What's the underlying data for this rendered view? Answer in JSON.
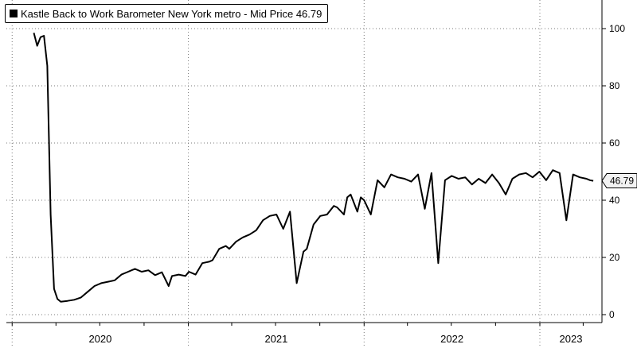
{
  "chart_data": {
    "type": "line",
    "title": "Kastle Back to Work Barometer New York metro - Mid Price 46.79",
    "legend": {
      "series_label": "Kastle Back to Work Barometer New York metro - Mid Price 46.79",
      "placement": "top-left"
    },
    "last_value_label": "46.79",
    "ylim": [
      -2,
      111
    ],
    "yticks": [
      0,
      20,
      40,
      60,
      80,
      100
    ],
    "y_axis_position": "right",
    "grid": true,
    "x_tick_labels": [
      "2020",
      "2021",
      "2022",
      "2023"
    ],
    "xlim": [
      "2019-12-20",
      "2023-05-10"
    ],
    "line_color": "#000000",
    "series": [
      {
        "x": [
          "2020-02-15",
          "2020-02-22",
          "2020-02-29",
          "2020-03-07",
          "2020-03-14",
          "2020-03-21",
          "2020-03-28",
          "2020-04-04",
          "2020-04-11",
          "2020-04-25",
          "2020-05-09",
          "2020-05-23",
          "2020-06-06",
          "2020-06-20",
          "2020-07-04",
          "2020-07-18",
          "2020-08-01",
          "2020-08-15",
          "2020-08-29",
          "2020-09-05",
          "2020-09-12",
          "2020-09-26",
          "2020-10-10",
          "2020-10-24",
          "2020-11-07",
          "2020-11-21",
          "2020-11-28",
          "2020-12-12",
          "2020-12-26",
          "2021-01-02",
          "2021-01-16",
          "2021-01-30",
          "2021-02-13",
          "2021-02-20",
          "2021-03-06",
          "2021-03-20",
          "2021-03-27",
          "2021-04-10",
          "2021-04-24",
          "2021-05-08",
          "2021-05-22",
          "2021-06-05",
          "2021-06-19",
          "2021-07-03",
          "2021-07-17",
          "2021-07-31",
          "2021-08-14",
          "2021-08-28",
          "2021-09-04",
          "2021-09-18",
          "2021-10-02",
          "2021-10-16",
          "2021-10-30",
          "2021-11-06",
          "2021-11-20",
          "2021-11-27",
          "2021-12-04",
          "2021-12-18",
          "2021-12-25",
          "2022-01-01",
          "2022-01-15",
          "2022-01-29",
          "2022-02-12",
          "2022-02-26",
          "2022-03-12",
          "2022-03-26",
          "2022-04-09",
          "2022-04-23",
          "2022-05-07",
          "2022-05-21",
          "2022-06-04",
          "2022-06-18",
          "2022-07-02",
          "2022-07-16",
          "2022-07-30",
          "2022-08-13",
          "2022-08-27",
          "2022-09-10",
          "2022-09-24",
          "2022-10-08",
          "2022-10-22",
          "2022-11-05",
          "2022-11-19",
          "2022-12-03",
          "2022-12-17",
          "2022-12-31",
          "2023-01-14",
          "2023-01-28",
          "2023-02-11",
          "2023-02-25",
          "2023-03-11",
          "2023-03-25",
          "2023-04-08",
          "2023-04-15",
          "2023-04-22"
        ],
        "y": [
          98.5,
          94,
          97,
          97.5,
          87,
          35,
          9,
          5.5,
          4.5,
          4.8,
          5.2,
          6,
          8,
          10,
          11,
          11.5,
          12,
          14,
          15,
          15.5,
          16,
          15,
          15.5,
          13.8,
          14.8,
          10,
          13.5,
          14,
          13.5,
          15,
          14,
          18,
          18.5,
          19,
          23,
          24,
          23,
          25.5,
          27,
          28,
          29.5,
          33,
          34.5,
          35,
          30,
          36,
          11,
          22,
          23,
          31.5,
          34.5,
          35,
          38,
          37.5,
          35,
          41,
          42,
          36,
          41,
          40,
          35,
          47,
          44.5,
          49,
          48,
          47.5,
          46.5,
          49,
          37,
          49.5,
          18,
          47,
          48.5,
          47.5,
          48,
          45.5,
          47.5,
          46,
          49,
          46,
          42,
          47.5,
          49,
          49.5,
          48,
          50,
          47,
          50.5,
          49.5,
          33,
          49,
          48,
          47.5,
          47,
          46.79
        ]
      }
    ]
  }
}
